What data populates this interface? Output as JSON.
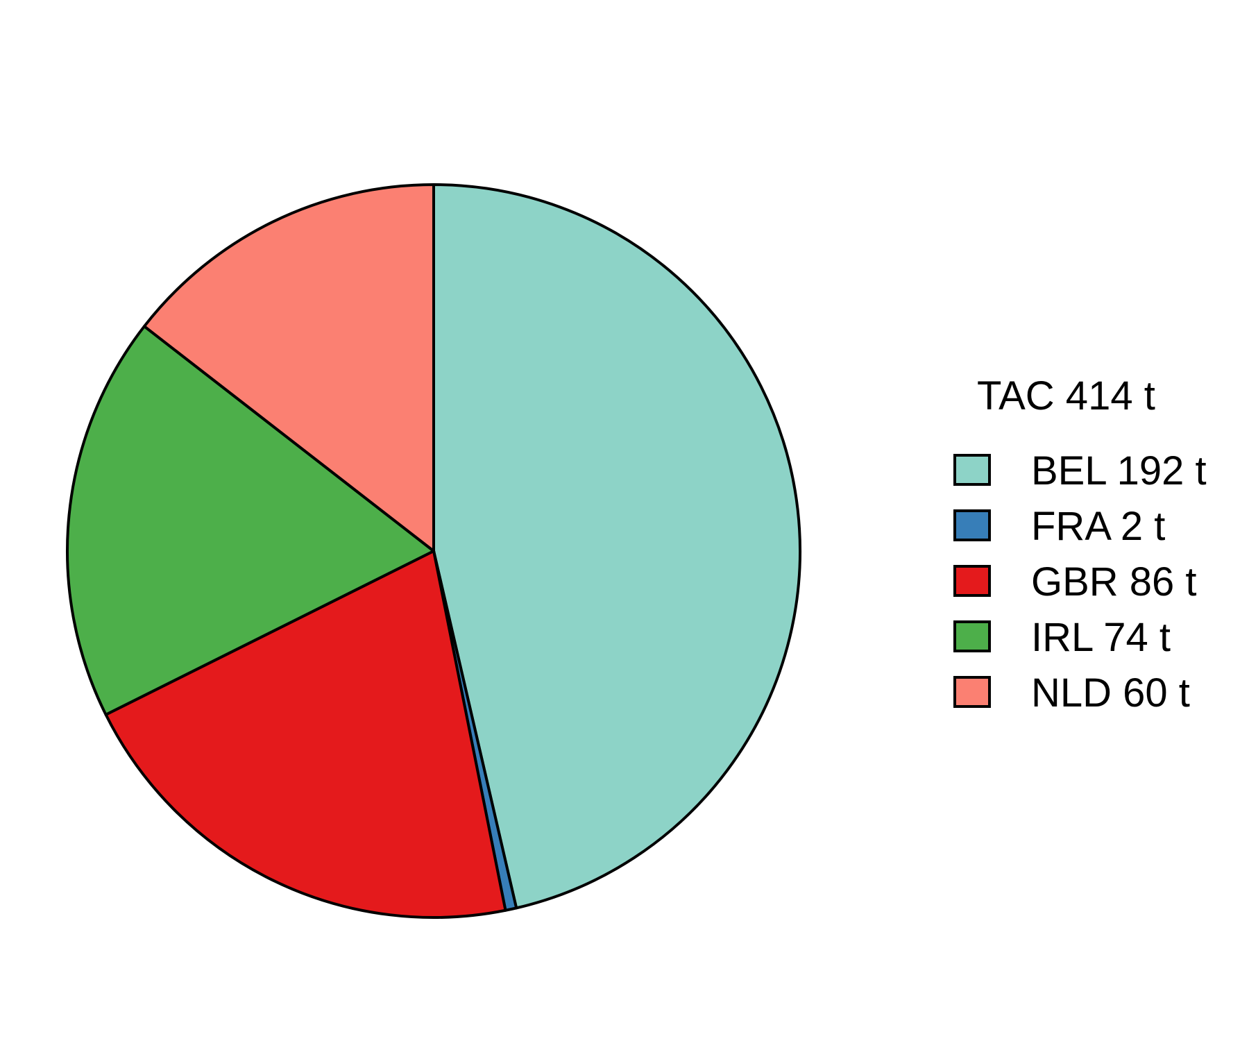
{
  "chart_data": {
    "type": "pie",
    "legend_title": "TAC 414 t",
    "legend_position": "right",
    "slices": [
      {
        "label": "BEL 192 t",
        "value": 192,
        "color": "#8DD3C7"
      },
      {
        "label": "FRA 2 t",
        "value": 2,
        "color": "#377EB8"
      },
      {
        "label": "GBR 86 t",
        "value": 86,
        "color": "#E41A1C"
      },
      {
        "label": "IRL 74 t",
        "value": 74,
        "color": "#4DAF4A"
      },
      {
        "label": "NLD 60 t",
        "value": 60,
        "color": "#FB8072"
      }
    ]
  }
}
